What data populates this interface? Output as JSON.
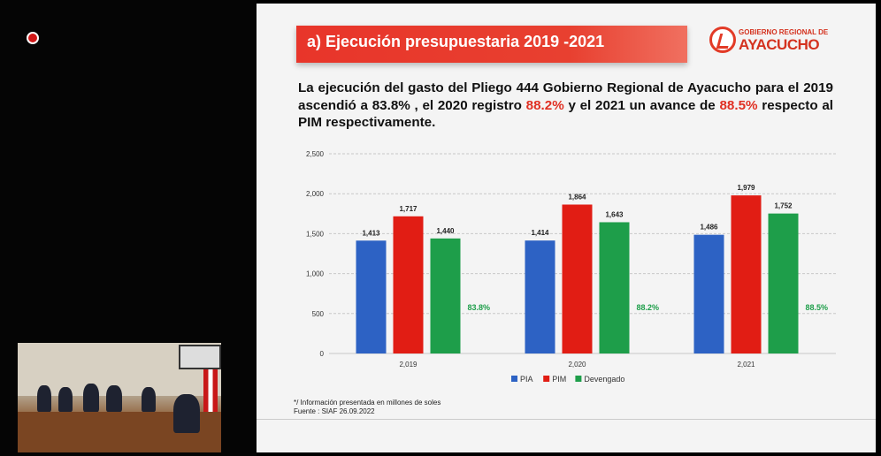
{
  "slide": {
    "title": "a) Ejecución presupuestaria 2019 -2021",
    "logo": {
      "top_text": "GOBIERNO REGIONAL DE",
      "main_text": "AYACUCHO"
    },
    "description": {
      "part1": "La ejecución del gasto del Pliego 444 Gobierno Regional de Ayacucho para el 2019 ascendió a 83.8% , el 2020 registro ",
      "hl1": "88.2%",
      "part2": " y el 2021 un avance de ",
      "hl2": "88.5%",
      "part3": " respecto al PIM respectivamente."
    },
    "footnote": {
      "line1": "*/ Información presentada en millones de soles",
      "line2": "Fuente : SIAF 26.09.2022"
    }
  },
  "chart_data": {
    "type": "bar",
    "categories": [
      "2,019",
      "2,020",
      "2,021"
    ],
    "series": [
      {
        "name": "PIA",
        "values": [
          1413,
          1414,
          1486
        ],
        "labels": [
          "1,413",
          "1,414",
          "1,486"
        ],
        "color": "#2d62c4"
      },
      {
        "name": "PIM",
        "values": [
          1717,
          1864,
          1979
        ],
        "labels": [
          "1,717",
          "1,864",
          "1,979"
        ],
        "color": "#e11d14"
      },
      {
        "name": "Devengado",
        "values": [
          1440,
          1643,
          1752
        ],
        "labels": [
          "1,440",
          "1,643",
          "1,752"
        ],
        "color": "#1e9e4a"
      }
    ],
    "annotations": [
      "83.8%",
      "88.2%",
      "88.5%"
    ],
    "annotation_color": "#1e9e4a",
    "ylim": [
      0,
      2500
    ],
    "yticks": [
      0,
      500,
      1000,
      1500,
      2000,
      2500
    ],
    "ytick_labels": [
      "0",
      "500",
      "1,000",
      "1,500",
      "2,000",
      "2,500"
    ],
    "grid": true,
    "legend": "bottom"
  }
}
